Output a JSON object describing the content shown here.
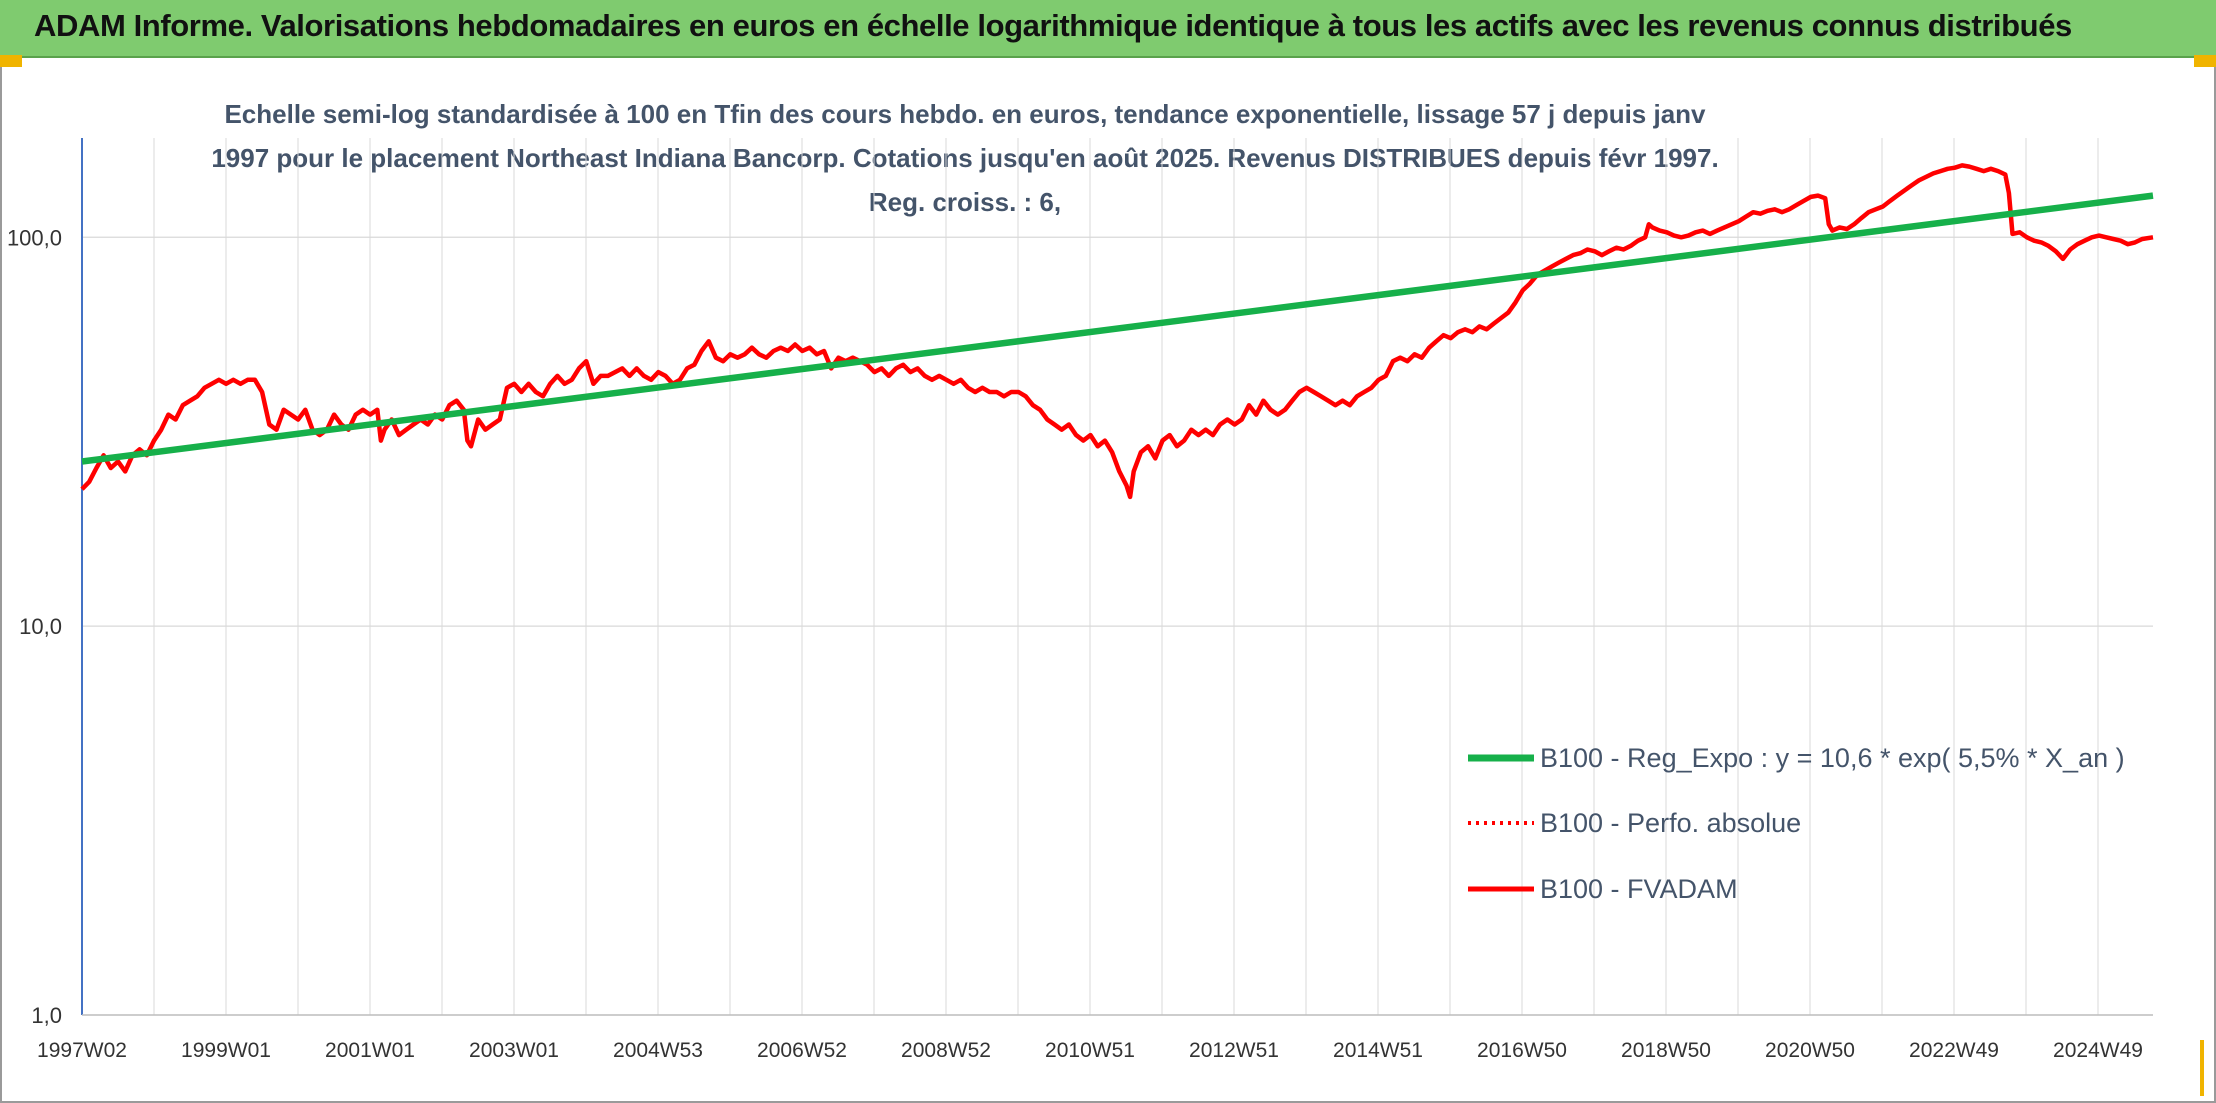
{
  "header": {
    "title": "ADAM Informe. Valorisations hebdomadaires en euros en échelle logarithmique identique à tous les actifs avec les revenus connus distribués"
  },
  "colors": {
    "header_bg": "#7fcb6f",
    "trend": "#16b04a",
    "price": "#ff0000",
    "grid": "#d9d9d9",
    "accent": "#f0b400"
  },
  "chart_data": {
    "type": "line",
    "title": "Echelle semi-log standardisée à 100 en Tfin des cours hebdo. en euros, tendance exponentielle, lissage 57 j depuis janv 1997 pour le placement Northeast Indiana Bancorp. Cotations jusqu'en août 2025. Revenus DISTRIBUES depuis févr 1997. Reg. croiss. : 6,",
    "y_scale": "log",
    "ylim": [
      1,
      180
    ],
    "y_ticks": [
      "1,0",
      "10,0",
      "100,0"
    ],
    "x_tick_labels": [
      "1997W02",
      "1999W01",
      "2001W01",
      "2003W01",
      "2004W53",
      "2006W52",
      "2008W52",
      "2010W51",
      "2012W51",
      "2014W51",
      "2016W50",
      "2018W50",
      "2020W50",
      "2022W49",
      "2024W49"
    ],
    "xlim": [
      1997.0,
      2025.75
    ],
    "grid": true,
    "legend_position": "bottom-right",
    "series": [
      {
        "name": "B100 - Reg_Expo : y = 10,6 * exp( 5,5% *  X_an )",
        "style": "solid-thick",
        "color": "#16b04a",
        "points": [
          [
            1997.0,
            26.5
          ],
          [
            2025.75,
            128.0
          ]
        ]
      },
      {
        "name": "B100 - Perfo. absolue",
        "style": "dotted",
        "color": "#ff0000",
        "points": []
      },
      {
        "name": "B100 - FVADAM",
        "style": "solid",
        "color": "#ff0000",
        "points": [
          [
            1997.0,
            22.5
          ],
          [
            1997.1,
            23.5
          ],
          [
            1997.2,
            25.5
          ],
          [
            1997.3,
            27.5
          ],
          [
            1997.4,
            25.5
          ],
          [
            1997.5,
            26.5
          ],
          [
            1997.6,
            25
          ],
          [
            1997.7,
            27.5
          ],
          [
            1997.8,
            28.5
          ],
          [
            1997.9,
            27.5
          ],
          [
            1998.0,
            30
          ],
          [
            1998.1,
            32
          ],
          [
            1998.2,
            35
          ],
          [
            1998.3,
            34
          ],
          [
            1998.4,
            37
          ],
          [
            1998.5,
            38
          ],
          [
            1998.6,
            39
          ],
          [
            1998.7,
            41
          ],
          [
            1998.8,
            42
          ],
          [
            1998.9,
            43
          ],
          [
            1999.0,
            42
          ],
          [
            1999.1,
            43
          ],
          [
            1999.2,
            42
          ],
          [
            1999.3,
            43
          ],
          [
            1999.4,
            43
          ],
          [
            1999.5,
            40
          ],
          [
            1999.6,
            33
          ],
          [
            1999.7,
            32
          ],
          [
            1999.8,
            36
          ],
          [
            1999.9,
            35
          ],
          [
            2000.0,
            34
          ],
          [
            2000.1,
            36
          ],
          [
            2000.2,
            32
          ],
          [
            2000.3,
            31
          ],
          [
            2000.4,
            32
          ],
          [
            2000.5,
            35
          ],
          [
            2000.6,
            33
          ],
          [
            2000.7,
            32
          ],
          [
            2000.8,
            35
          ],
          [
            2000.9,
            36
          ],
          [
            2001.0,
            35
          ],
          [
            2001.1,
            36
          ],
          [
            2001.15,
            30
          ],
          [
            2001.2,
            32
          ],
          [
            2001.3,
            34
          ],
          [
            2001.4,
            31
          ],
          [
            2001.5,
            32
          ],
          [
            2001.6,
            33
          ],
          [
            2001.7,
            34
          ],
          [
            2001.8,
            33
          ],
          [
            2001.9,
            35
          ],
          [
            2002.0,
            34
          ],
          [
            2002.1,
            37
          ],
          [
            2002.2,
            38
          ],
          [
            2002.3,
            36
          ],
          [
            2002.35,
            30
          ],
          [
            2002.4,
            29
          ],
          [
            2002.5,
            34
          ],
          [
            2002.6,
            32
          ],
          [
            2002.7,
            33
          ],
          [
            2002.8,
            34
          ],
          [
            2002.9,
            41
          ],
          [
            2003.0,
            42
          ],
          [
            2003.1,
            40
          ],
          [
            2003.2,
            42
          ],
          [
            2003.3,
            40
          ],
          [
            2003.4,
            39
          ],
          [
            2003.5,
            42
          ],
          [
            2003.6,
            44
          ],
          [
            2003.7,
            42
          ],
          [
            2003.8,
            43
          ],
          [
            2003.9,
            46
          ],
          [
            2004.0,
            48
          ],
          [
            2004.1,
            42
          ],
          [
            2004.2,
            44
          ],
          [
            2004.3,
            44
          ],
          [
            2004.4,
            45
          ],
          [
            2004.5,
            46
          ],
          [
            2004.6,
            44
          ],
          [
            2004.7,
            46
          ],
          [
            2004.8,
            44
          ],
          [
            2004.9,
            43
          ],
          [
            2005.0,
            45
          ],
          [
            2005.1,
            44
          ],
          [
            2005.2,
            42
          ],
          [
            2005.3,
            43
          ],
          [
            2005.4,
            46
          ],
          [
            2005.5,
            47
          ],
          [
            2005.6,
            51
          ],
          [
            2005.7,
            54
          ],
          [
            2005.8,
            49
          ],
          [
            2005.9,
            48
          ],
          [
            2006.0,
            50
          ],
          [
            2006.1,
            49
          ],
          [
            2006.2,
            50
          ],
          [
            2006.3,
            52
          ],
          [
            2006.4,
            50
          ],
          [
            2006.5,
            49
          ],
          [
            2006.6,
            51
          ],
          [
            2006.7,
            52
          ],
          [
            2006.8,
            51
          ],
          [
            2006.9,
            53
          ],
          [
            2007.0,
            51
          ],
          [
            2007.1,
            52
          ],
          [
            2007.2,
            50
          ],
          [
            2007.3,
            51
          ],
          [
            2007.4,
            46
          ],
          [
            2007.5,
            49
          ],
          [
            2007.6,
            48
          ],
          [
            2007.7,
            49
          ],
          [
            2007.8,
            48
          ],
          [
            2007.9,
            47
          ],
          [
            2008.0,
            45
          ],
          [
            2008.1,
            46
          ],
          [
            2008.2,
            44
          ],
          [
            2008.3,
            46
          ],
          [
            2008.4,
            47
          ],
          [
            2008.5,
            45
          ],
          [
            2008.6,
            46
          ],
          [
            2008.7,
            44
          ],
          [
            2008.8,
            43
          ],
          [
            2008.9,
            44
          ],
          [
            2009.0,
            43
          ],
          [
            2009.1,
            42
          ],
          [
            2009.2,
            43
          ],
          [
            2009.3,
            41
          ],
          [
            2009.4,
            40
          ],
          [
            2009.5,
            41
          ],
          [
            2009.6,
            40
          ],
          [
            2009.7,
            40
          ],
          [
            2009.8,
            39
          ],
          [
            2009.9,
            40
          ],
          [
            2010.0,
            40
          ],
          [
            2010.1,
            39
          ],
          [
            2010.2,
            37
          ],
          [
            2010.3,
            36
          ],
          [
            2010.4,
            34
          ],
          [
            2010.5,
            33
          ],
          [
            2010.6,
            32
          ],
          [
            2010.7,
            33
          ],
          [
            2010.8,
            31
          ],
          [
            2010.9,
            30
          ],
          [
            2011.0,
            31
          ],
          [
            2011.1,
            29
          ],
          [
            2011.2,
            30
          ],
          [
            2011.3,
            28
          ],
          [
            2011.4,
            25
          ],
          [
            2011.5,
            23
          ],
          [
            2011.55,
            21.5
          ],
          [
            2011.6,
            25
          ],
          [
            2011.7,
            28
          ],
          [
            2011.8,
            29
          ],
          [
            2011.9,
            27
          ],
          [
            2012.0,
            30
          ],
          [
            2012.1,
            31
          ],
          [
            2012.2,
            29
          ],
          [
            2012.3,
            30
          ],
          [
            2012.4,
            32
          ],
          [
            2012.5,
            31
          ],
          [
            2012.6,
            32
          ],
          [
            2012.7,
            31
          ],
          [
            2012.8,
            33
          ],
          [
            2012.9,
            34
          ],
          [
            2013.0,
            33
          ],
          [
            2013.1,
            34
          ],
          [
            2013.2,
            37
          ],
          [
            2013.3,
            35
          ],
          [
            2013.4,
            38
          ],
          [
            2013.5,
            36
          ],
          [
            2013.6,
            35
          ],
          [
            2013.7,
            36
          ],
          [
            2013.8,
            38
          ],
          [
            2013.9,
            40
          ],
          [
            2014.0,
            41
          ],
          [
            2014.1,
            40
          ],
          [
            2014.2,
            39
          ],
          [
            2014.3,
            38
          ],
          [
            2014.4,
            37
          ],
          [
            2014.5,
            38
          ],
          [
            2014.6,
            37
          ],
          [
            2014.7,
            39
          ],
          [
            2014.8,
            40
          ],
          [
            2014.9,
            41
          ],
          [
            2015.0,
            43
          ],
          [
            2015.1,
            44
          ],
          [
            2015.2,
            48
          ],
          [
            2015.3,
            49
          ],
          [
            2015.4,
            48
          ],
          [
            2015.5,
            50
          ],
          [
            2015.6,
            49
          ],
          [
            2015.7,
            52
          ],
          [
            2015.8,
            54
          ],
          [
            2015.9,
            56
          ],
          [
            2016.0,
            55
          ],
          [
            2016.1,
            57
          ],
          [
            2016.2,
            58
          ],
          [
            2016.3,
            57
          ],
          [
            2016.4,
            59
          ],
          [
            2016.5,
            58
          ],
          [
            2016.6,
            60
          ],
          [
            2016.7,
            62
          ],
          [
            2016.8,
            64
          ],
          [
            2016.9,
            68
          ],
          [
            2017.0,
            73
          ],
          [
            2017.1,
            76
          ],
          [
            2017.2,
            80
          ],
          [
            2017.3,
            82
          ],
          [
            2017.4,
            84
          ],
          [
            2017.5,
            86
          ],
          [
            2017.6,
            88
          ],
          [
            2017.7,
            90
          ],
          [
            2017.8,
            91
          ],
          [
            2017.9,
            93
          ],
          [
            2018.0,
            92
          ],
          [
            2018.1,
            90
          ],
          [
            2018.2,
            92
          ],
          [
            2018.3,
            94
          ],
          [
            2018.4,
            93
          ],
          [
            2018.5,
            95
          ],
          [
            2018.6,
            98
          ],
          [
            2018.7,
            100
          ],
          [
            2018.75,
            108
          ],
          [
            2018.8,
            106
          ],
          [
            2018.9,
            104
          ],
          [
            2019.0,
            103
          ],
          [
            2019.1,
            101
          ],
          [
            2019.2,
            100
          ],
          [
            2019.3,
            101
          ],
          [
            2019.4,
            103
          ],
          [
            2019.5,
            104
          ],
          [
            2019.6,
            102
          ],
          [
            2019.7,
            104
          ],
          [
            2019.8,
            106
          ],
          [
            2019.9,
            108
          ],
          [
            2020.0,
            110
          ],
          [
            2020.1,
            113
          ],
          [
            2020.2,
            116
          ],
          [
            2020.3,
            115
          ],
          [
            2020.4,
            117
          ],
          [
            2020.5,
            118
          ],
          [
            2020.6,
            116
          ],
          [
            2020.7,
            118
          ],
          [
            2020.8,
            121
          ],
          [
            2020.9,
            124
          ],
          [
            2021.0,
            127
          ],
          [
            2021.1,
            128
          ],
          [
            2021.2,
            126
          ],
          [
            2021.25,
            108
          ],
          [
            2021.3,
            104
          ],
          [
            2021.4,
            106
          ],
          [
            2021.5,
            105
          ],
          [
            2021.6,
            108
          ],
          [
            2021.7,
            112
          ],
          [
            2021.8,
            116
          ],
          [
            2021.9,
            118
          ],
          [
            2022.0,
            120
          ],
          [
            2022.1,
            124
          ],
          [
            2022.2,
            128
          ],
          [
            2022.3,
            132
          ],
          [
            2022.4,
            136
          ],
          [
            2022.5,
            140
          ],
          [
            2022.6,
            143
          ],
          [
            2022.7,
            146
          ],
          [
            2022.8,
            148
          ],
          [
            2022.9,
            150
          ],
          [
            2023.0,
            151
          ],
          [
            2023.1,
            153
          ],
          [
            2023.2,
            152
          ],
          [
            2023.3,
            150
          ],
          [
            2023.4,
            148
          ],
          [
            2023.5,
            150
          ],
          [
            2023.6,
            148
          ],
          [
            2023.7,
            145
          ],
          [
            2023.75,
            130
          ],
          [
            2023.8,
            102
          ],
          [
            2023.9,
            103
          ],
          [
            2024.0,
            100
          ],
          [
            2024.1,
            98
          ],
          [
            2024.2,
            97
          ],
          [
            2024.3,
            95
          ],
          [
            2024.4,
            92
          ],
          [
            2024.5,
            88
          ],
          [
            2024.6,
            93
          ],
          [
            2024.7,
            96
          ],
          [
            2024.8,
            98
          ],
          [
            2024.9,
            100
          ],
          [
            2025.0,
            101
          ],
          [
            2025.1,
            100
          ],
          [
            2025.2,
            99
          ],
          [
            2025.3,
            98
          ],
          [
            2025.4,
            96
          ],
          [
            2025.5,
            97
          ],
          [
            2025.6,
            99
          ],
          [
            2025.75,
            100
          ]
        ]
      }
    ]
  }
}
